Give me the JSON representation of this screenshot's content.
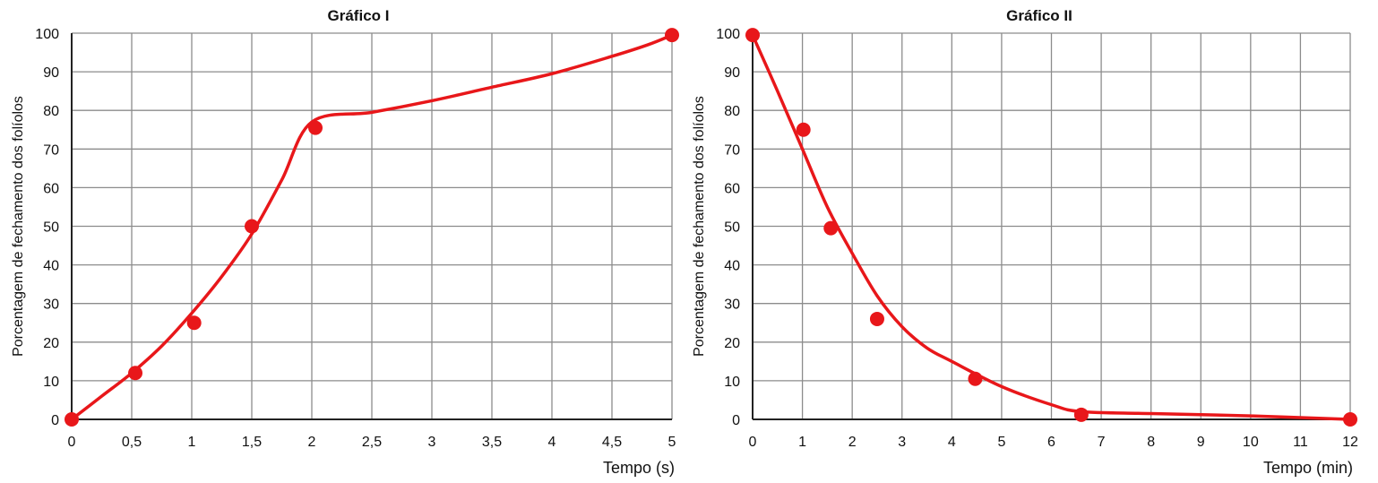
{
  "chart_data": [
    {
      "type": "line",
      "title": "Gráfico I",
      "xlabel": "Tempo (s)",
      "ylabel": "Porcentagem de fechamento dos folíolos",
      "xlim": [
        0,
        5
      ],
      "ylim": [
        0,
        100
      ],
      "x_ticks": [
        0,
        0.5,
        1,
        1.5,
        2,
        2.5,
        3,
        3.5,
        4,
        4.5,
        5
      ],
      "x_tick_labels": [
        "0",
        "0,5",
        "1",
        "1,5",
        "2",
        "2,5",
        "3",
        "3,5",
        "4",
        "4,5",
        "5"
      ],
      "y_ticks": [
        0,
        10,
        20,
        30,
        40,
        50,
        60,
        70,
        80,
        90,
        100
      ],
      "y_tick_labels": [
        "0",
        "10",
        "20",
        "30",
        "40",
        "50",
        "60",
        "70",
        "80",
        "90",
        "100"
      ],
      "grid": true,
      "points": [
        {
          "x": 0,
          "y": 0
        },
        {
          "x": 0.53,
          "y": 12
        },
        {
          "x": 1.02,
          "y": 25
        },
        {
          "x": 1.5,
          "y": 50
        },
        {
          "x": 2.03,
          "y": 75.5
        },
        {
          "x": 5,
          "y": 99.5
        }
      ],
      "curve": [
        [
          0,
          0
        ],
        [
          0.25,
          6
        ],
        [
          0.5,
          12
        ],
        [
          0.75,
          19
        ],
        [
          1,
          27.5
        ],
        [
          1.25,
          37
        ],
        [
          1.5,
          48
        ],
        [
          1.75,
          62
        ],
        [
          2,
          77
        ],
        [
          2.5,
          79.5
        ],
        [
          3,
          82.5
        ],
        [
          3.5,
          86
        ],
        [
          4,
          89.5
        ],
        [
          4.5,
          94
        ],
        [
          4.8,
          97
        ],
        [
          5,
          99.5
        ]
      ],
      "color": "#e8171a"
    },
    {
      "type": "line",
      "title": "Gráfico II",
      "xlabel": "Tempo (min)",
      "ylabel": "Porcentagem de fechamento dos folíolos",
      "xlim": [
        0,
        12
      ],
      "ylim": [
        0,
        100
      ],
      "x_ticks": [
        0,
        1,
        2,
        3,
        4,
        5,
        6,
        7,
        8,
        9,
        10,
        11,
        12
      ],
      "x_tick_labels": [
        "0",
        "1",
        "2",
        "3",
        "4",
        "5",
        "6",
        "7",
        "8",
        "9",
        "10",
        "11",
        "12"
      ],
      "y_ticks": [
        0,
        10,
        20,
        30,
        40,
        50,
        60,
        70,
        80,
        90,
        100
      ],
      "y_tick_labels": [
        "0",
        "10",
        "20",
        "30",
        "40",
        "50",
        "60",
        "70",
        "80",
        "90",
        "100"
      ],
      "grid": true,
      "points": [
        {
          "x": 0,
          "y": 99.5
        },
        {
          "x": 1.02,
          "y": 75
        },
        {
          "x": 1.57,
          "y": 49.5
        },
        {
          "x": 2.5,
          "y": 26
        },
        {
          "x": 4.47,
          "y": 10.5
        },
        {
          "x": 6.6,
          "y": 1.2
        },
        {
          "x": 12,
          "y": 0
        }
      ],
      "curve": [
        [
          0,
          99.5
        ],
        [
          0.5,
          85
        ],
        [
          1,
          70
        ],
        [
          1.5,
          55
        ],
        [
          2,
          43
        ],
        [
          2.5,
          32
        ],
        [
          3,
          24
        ],
        [
          3.5,
          18.5
        ],
        [
          4,
          15
        ],
        [
          5,
          8.5
        ],
        [
          6,
          3.8
        ],
        [
          6.6,
          2
        ],
        [
          8,
          1.5
        ],
        [
          10,
          0.9
        ],
        [
          12,
          0
        ]
      ],
      "color": "#e8171a"
    }
  ]
}
